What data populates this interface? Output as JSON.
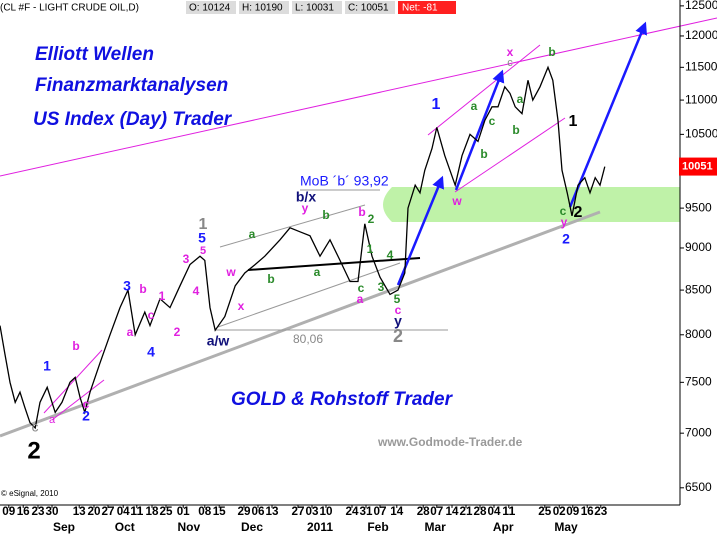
{
  "chart_data": {
    "type": "line",
    "header": {
      "symbol": "(CL #F - LIGHT CRUDE OIL,D)",
      "open": "O: 10124",
      "high": "H: 10190",
      "low": "L: 10031",
      "close": "C: 10051",
      "net": "Net: -81"
    },
    "captions": {
      "line1": "Elliott Wellen",
      "line2": "Finanzmarktanalysen",
      "line3": "US Index (Day) Trader",
      "line4": "GOLD & Rohstoff Trader",
      "website": "www.Godmode-Trader.de",
      "copyright": "© eSignal, 2010"
    },
    "color": "#000000",
    "last_price": 10051,
    "last_price_color": "#ff0000",
    "x": [
      0,
      1.2,
      2.5,
      3.8,
      5,
      6.2,
      7.5,
      8.8,
      10,
      11.8,
      13.8,
      15.5,
      17.5,
      18.8,
      20,
      21.2,
      22.5,
      25,
      27.5,
      30,
      32,
      33.8,
      36.2,
      37.5,
      40,
      42.5,
      45,
      47.5,
      50,
      51.2,
      52.5,
      53.8,
      56.2,
      58.8,
      61.2,
      63.8,
      66.2,
      70,
      72.5,
      75,
      77.5,
      80,
      82.5,
      85,
      87.5,
      89.5,
      91.2,
      93,
      95,
      97.5,
      99.5,
      101.2,
      102,
      103.8,
      105,
      106.2,
      108,
      109.2,
      111.2,
      113.8,
      115.5,
      117.5,
      119.5,
      121.2,
      123,
      124.5,
      126.2,
      127.5,
      128.8,
      130.5,
      132,
      133.2,
      135,
      137,
      138.2,
      139.5,
      140.5,
      141.8,
      143,
      144.5,
      146.2,
      147.5,
      148.8,
      150,
      151.2
    ],
    "values": [
      8100,
      7800,
      7500,
      7300,
      7400,
      7250,
      7100,
      7050,
      7300,
      7450,
      7200,
      7300,
      7500,
      7550,
      7350,
      7200,
      7400,
      7700,
      8000,
      8300,
      8500,
      8000,
      8250,
      8100,
      8400,
      8300,
      8550,
      8800,
      8900,
      8850,
      8300,
      8050,
      8200,
      8550,
      8700,
      8800,
      8900,
      9100,
      9250,
      9200,
      9150,
      8900,
      9100,
      8850,
      8600,
      8600,
      9300,
      8900,
      8650,
      8450,
      8500,
      8700,
      9500,
      9800,
      9700,
      10000,
      10300,
      10600,
      10200,
      9800,
      10200,
      10500,
      10400,
      10700,
      10900,
      10900,
      11200,
      11100,
      10900,
      10800,
      11300,
      11000,
      11200,
      11500,
      11300,
      10700,
      10000,
      9700,
      9400,
      9800,
      9900,
      9700,
      9900,
      9800,
      10050
    ],
    "log_scale": true,
    "ylim": [
      6350,
      12600
    ],
    "yticks": [
      6500,
      7000,
      7500,
      8000,
      8500,
      9000,
      9500,
      10000,
      10500,
      11000,
      11500,
      12000,
      12500
    ],
    "xlim": [
      0,
      170
    ],
    "xticks": [
      {
        "value": 2.2,
        "label": "09"
      },
      {
        "value": 5.8,
        "label": "16"
      },
      {
        "value": 9.5,
        "label": "23"
      },
      {
        "value": 13,
        "label": "30"
      },
      {
        "value": 19.8,
        "label": "13"
      },
      {
        "value": 23.5,
        "label": "20"
      },
      {
        "value": 27,
        "label": "27"
      },
      {
        "value": 30.8,
        "label": "04"
      },
      {
        "value": 34.2,
        "label": "11"
      },
      {
        "value": 38,
        "label": "18"
      },
      {
        "value": 41.5,
        "label": "25"
      },
      {
        "value": 45.8,
        "label": "01"
      },
      {
        "value": 51.2,
        "label": "08"
      },
      {
        "value": 54.8,
        "label": "15"
      },
      {
        "value": 61,
        "label": "29"
      },
      {
        "value": 64.5,
        "label": "06"
      },
      {
        "value": 68,
        "label": "13"
      },
      {
        "value": 74.5,
        "label": "27"
      },
      {
        "value": 78,
        "label": "03"
      },
      {
        "value": 81.5,
        "label": "10"
      },
      {
        "value": 88,
        "label": "24"
      },
      {
        "value": 91.5,
        "label": "31"
      },
      {
        "value": 95,
        "label": "07"
      },
      {
        "value": 99.2,
        "label": "14"
      },
      {
        "value": 105.8,
        "label": "28"
      },
      {
        "value": 109.2,
        "label": "07"
      },
      {
        "value": 113,
        "label": "14"
      },
      {
        "value": 116.5,
        "label": "21"
      },
      {
        "value": 120,
        "label": "28"
      },
      {
        "value": 123.5,
        "label": "04"
      },
      {
        "value": 127.2,
        "label": "11"
      },
      {
        "value": 136.2,
        "label": "25"
      },
      {
        "value": 139.8,
        "label": "02"
      },
      {
        "value": 143.2,
        "label": "09"
      },
      {
        "value": 146.8,
        "label": "16"
      },
      {
        "value": 150.2,
        "label": "23"
      }
    ],
    "month_ticks": [
      {
        "value": 16,
        "label": "Sep"
      },
      {
        "value": 31.2,
        "label": "Oct"
      },
      {
        "value": 47.2,
        "label": "Nov"
      },
      {
        "value": 63,
        "label": "Dec"
      },
      {
        "value": 80,
        "label": "2011"
      },
      {
        "value": 94.5,
        "label": "Feb"
      },
      {
        "value": 108.8,
        "label": "Mar"
      },
      {
        "value": 125.8,
        "label": "Apr"
      },
      {
        "value": 141.5,
        "label": "May"
      }
    ],
    "annotations": [
      {
        "text": "c",
        "color": "#888888"
      },
      {
        "text": "2",
        "color": "#000000"
      },
      {
        "text": "a",
        "color": "#e020e0"
      },
      {
        "text": "1",
        "color": "#1a1aff"
      },
      {
        "text": "b",
        "color": "#e020e0"
      },
      {
        "text": "c",
        "color": "#e020e0"
      },
      {
        "text": "2",
        "color": "#1a1aff"
      },
      {
        "text": "3",
        "color": "#1a1aff"
      },
      {
        "text": "b",
        "color": "#e020e0"
      },
      {
        "text": "1",
        "color": "#e020e0"
      },
      {
        "text": "a",
        "color": "#e020e0"
      },
      {
        "text": "c",
        "color": "#e020e0"
      },
      {
        "text": "4",
        "color": "#1a1aff"
      },
      {
        "text": "2",
        "color": "#e020e0"
      },
      {
        "text": "3",
        "color": "#e020e0"
      },
      {
        "text": "4",
        "color": "#e020e0"
      },
      {
        "text": "5",
        "color": "#1a1aff"
      },
      {
        "text": "1",
        "color": "#888888"
      },
      {
        "text": "5",
        "color": "#e020e0"
      },
      {
        "text": "w",
        "color": "#e020e0"
      },
      {
        "text": "x",
        "color": "#e020e0"
      },
      {
        "text": "a/w",
        "color": "#10107a"
      },
      {
        "text": "a",
        "color": "#2a8a2a"
      },
      {
        "text": "b",
        "color": "#2a8a2a"
      },
      {
        "text": "a",
        "color": "#2a8a2a"
      },
      {
        "text": "b",
        "color": "#2a8a2a"
      },
      {
        "text": "y",
        "color": "#e020e0"
      },
      {
        "text": "b/x",
        "color": "#10107a"
      },
      {
        "text": "MoB ´b´ 93,92",
        "color": "#1a1aff"
      },
      {
        "text": "b",
        "color": "#e020e0"
      },
      {
        "text": "2",
        "color": "#2a8a2a"
      },
      {
        "text": "1",
        "color": "#2a8a2a"
      },
      {
        "text": "4",
        "color": "#2a8a2a"
      },
      {
        "text": "3",
        "color": "#2a8a2a"
      },
      {
        "text": "c",
        "color": "#2a8a2a"
      },
      {
        "text": "a",
        "color": "#e020e0"
      },
      {
        "text": "5",
        "color": "#2a8a2a"
      },
      {
        "text": "c",
        "color": "#e020e0"
      },
      {
        "text": "y",
        "color": "#10107a"
      },
      {
        "text": "2",
        "color": "#888888"
      },
      {
        "text": "80,06",
        "color": "#888888"
      },
      {
        "text": "1",
        "color": "#1a1aff"
      },
      {
        "text": "a",
        "color": "#2a8a2a"
      },
      {
        "text": "b",
        "color": "#2a8a2a"
      },
      {
        "text": "c",
        "color": "#2a8a2a"
      },
      {
        "text": "w",
        "color": "#e020e0"
      },
      {
        "text": "x",
        "color": "#e020e0"
      },
      {
        "text": "c",
        "color": "#888888"
      },
      {
        "text": "a",
        "color": "#2a8a2a"
      },
      {
        "text": "b",
        "color": "#2a8a2a"
      },
      {
        "text": "b",
        "color": "#2a8a2a"
      },
      {
        "text": "1",
        "color": "#000000"
      },
      {
        "text": "c",
        "color": "#2a8a2a"
      },
      {
        "text": "y",
        "color": "#e020e0"
      },
      {
        "text": "2",
        "color": "#000000"
      },
      {
        "text": "2",
        "color": "#1a1aff"
      }
    ]
  }
}
